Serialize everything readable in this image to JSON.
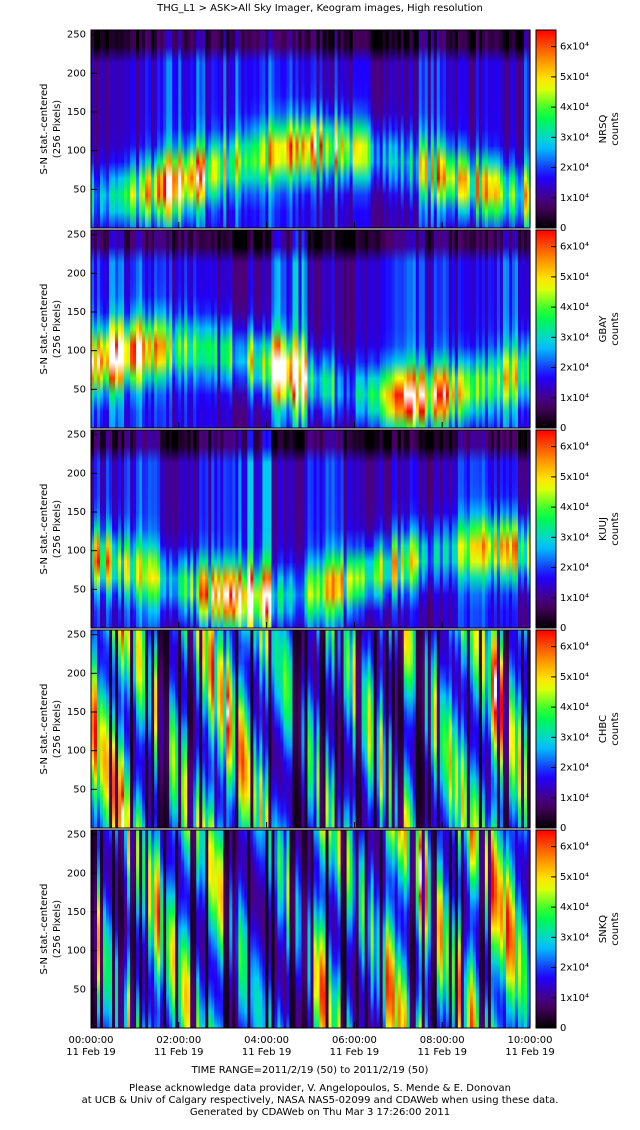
{
  "title": "THG_L1  >  ASK>All Sky Imager, Keogram images, High resolution",
  "x_axis": {
    "xlim": [
      0,
      10
    ],
    "xticks": [
      {
        "value": 0,
        "label": "00:00:00"
      },
      {
        "value": 2,
        "label": "02:00:00"
      },
      {
        "value": 4,
        "label": "04:00:00"
      },
      {
        "value": 6,
        "label": "06:00:00"
      },
      {
        "value": 8,
        "label": "08:00:00"
      },
      {
        "value": 10,
        "label": "10:00:00"
      }
    ],
    "date_label": "11 Feb 19"
  },
  "time_range": "TIME RANGE=2011/2/19 (50) to 2011/2/19 (50)",
  "footer": [
    "Please acknowledge data provider, V. Angelopoulos, S. Mende & E. Donovan",
    "at UCB & Univ of Calgary respectively, NASA NAS5-02099 and CDAWeb when using these data.",
    "Generated by CDAWeb on Thu Mar  3 17:26:00 2011"
  ],
  "chart_data": [
    {
      "type": "heatmap",
      "y_label": [
        "S-N stat.-centered",
        "(256 Pixels)"
      ],
      "ylim": [
        0,
        256
      ],
      "yticks": [
        50,
        100,
        150,
        200,
        250
      ],
      "colorbar": {
        "label": "NRSQ",
        "units": "counts",
        "lim": [
          0,
          65500
        ],
        "ticks": [
          0,
          {
            "value": 10000,
            "label": "1x10⁴"
          },
          {
            "value": 20000,
            "label": "2x10⁴"
          },
          {
            "value": 30000,
            "label": "3x10⁴"
          },
          {
            "value": 40000,
            "label": "4x10⁴"
          },
          {
            "value": 50000,
            "label": "5x10⁴"
          },
          {
            "value": 60000,
            "label": "6x10⁴"
          }
        ]
      }
    },
    {
      "type": "heatmap",
      "y_label": [
        "S-N stat.-centered",
        "(256 Pixels)"
      ],
      "ylim": [
        0,
        256
      ],
      "yticks": [
        50,
        100,
        150,
        200,
        250
      ],
      "colorbar": {
        "label": "GBAY",
        "units": "counts",
        "lim": [
          0,
          65500
        ],
        "ticks": [
          0,
          {
            "value": 10000,
            "label": "1x10⁴"
          },
          {
            "value": 20000,
            "label": "2x10⁴"
          },
          {
            "value": 30000,
            "label": "3x10⁴"
          },
          {
            "value": 40000,
            "label": "4x10⁴"
          },
          {
            "value": 50000,
            "label": "5x10⁴"
          },
          {
            "value": 60000,
            "label": "6x10⁴"
          }
        ]
      }
    },
    {
      "type": "heatmap",
      "y_label": [
        "S-N stat.-centered",
        "(256 Pixels)"
      ],
      "ylim": [
        0,
        256
      ],
      "yticks": [
        50,
        100,
        150,
        200,
        250
      ],
      "colorbar": {
        "label": "KUUJ",
        "units": "counts",
        "lim": [
          0,
          65500
        ],
        "ticks": [
          0,
          {
            "value": 10000,
            "label": "1x10⁴"
          },
          {
            "value": 20000,
            "label": "2x10⁴"
          },
          {
            "value": 30000,
            "label": "3x10⁴"
          },
          {
            "value": 40000,
            "label": "4x10⁴"
          },
          {
            "value": 50000,
            "label": "5x10⁴"
          },
          {
            "value": 60000,
            "label": "6x10⁴"
          }
        ]
      }
    },
    {
      "type": "heatmap",
      "y_label": [
        "S-N stat.-centered",
        "(256 Pixels)"
      ],
      "ylim": [
        0,
        256
      ],
      "yticks": [
        50,
        100,
        150,
        200,
        250
      ],
      "colorbar": {
        "label": "CHBC",
        "units": "counts",
        "lim": [
          0,
          65500
        ],
        "ticks": [
          0,
          {
            "value": 10000,
            "label": "1x10⁴"
          },
          {
            "value": 20000,
            "label": "2x10⁴"
          },
          {
            "value": 30000,
            "label": "3x10⁴"
          },
          {
            "value": 40000,
            "label": "4x10⁴"
          },
          {
            "value": 50000,
            "label": "5x10⁴"
          },
          {
            "value": 60000,
            "label": "6x10⁴"
          }
        ]
      }
    },
    {
      "type": "heatmap",
      "y_label": [
        "S-N stat.-centered",
        "(256 Pixels)"
      ],
      "ylim": [
        0,
        256
      ],
      "yticks": [
        50,
        100,
        150,
        200,
        250
      ],
      "colorbar": {
        "label": "SNKQ",
        "units": "counts",
        "lim": [
          0,
          65500
        ],
        "ticks": [
          0,
          {
            "value": 10000,
            "label": "1x10⁴"
          },
          {
            "value": 20000,
            "label": "2x10⁴"
          },
          {
            "value": 30000,
            "label": "3x10⁴"
          },
          {
            "value": 40000,
            "label": "4x10⁴"
          },
          {
            "value": 50000,
            "label": "5x10⁴"
          },
          {
            "value": 60000,
            "label": "6x10⁴"
          }
        ]
      }
    }
  ]
}
